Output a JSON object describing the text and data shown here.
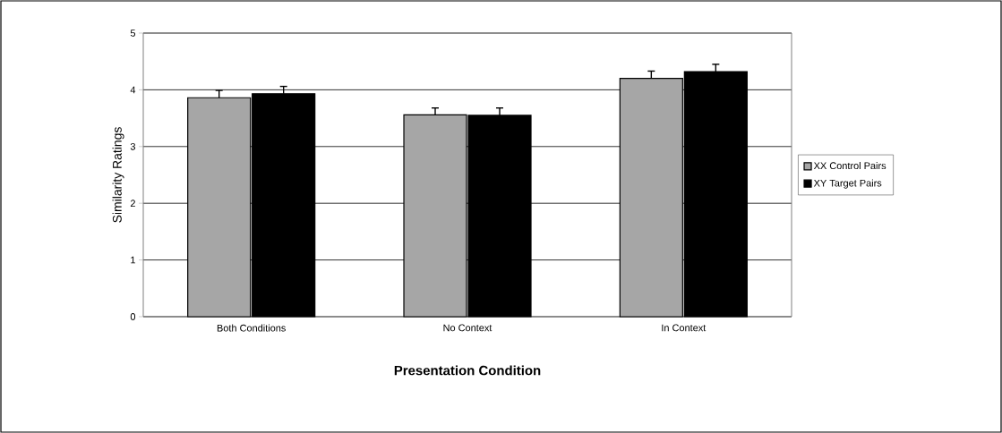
{
  "chart_data": {
    "type": "bar",
    "xlabel": "Presentation Condition",
    "ylabel": "Similarity Ratings",
    "categories": [
      "Both Conditions",
      "No Context",
      "In Context"
    ],
    "series": [
      {
        "name": "XX Control Pairs",
        "color": "#a6a6a6",
        "values": [
          3.86,
          3.56,
          4.2
        ],
        "errors": [
          0.13,
          0.12,
          0.13
        ]
      },
      {
        "name": "XY Target Pairs",
        "color": "#000000",
        "values": [
          3.93,
          3.55,
          4.32
        ],
        "errors": [
          0.13,
          0.13,
          0.13
        ]
      }
    ],
    "ylim": [
      0,
      5
    ],
    "yticks": [
      0,
      1,
      2,
      3,
      4,
      5
    ],
    "grid": "y",
    "legend": "right"
  }
}
